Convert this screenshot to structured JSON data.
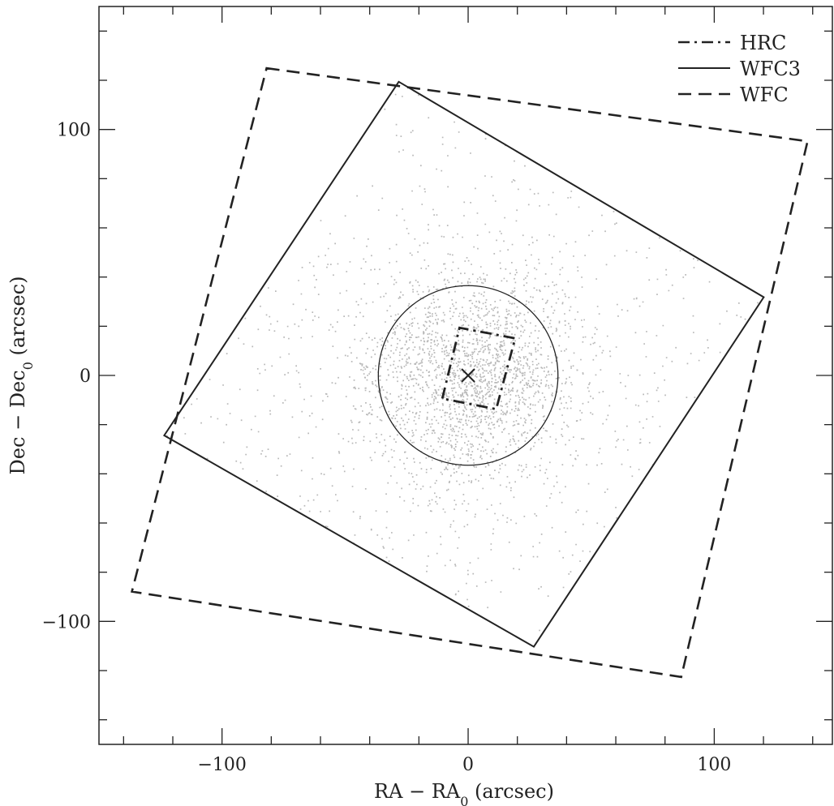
{
  "chart_data": {
    "type": "scatter",
    "xlabel": {
      "main": "RA − RA",
      "sub": "0",
      "tail": " (arcsec)"
    },
    "ylabel": {
      "main": "Dec − Dec",
      "sub": "0",
      "tail": " (arcsec)"
    },
    "xlim": [
      -150,
      148
    ],
    "ylim": [
      -150,
      150
    ],
    "xticks_major": [
      -100,
      0,
      100
    ],
    "yticks_major": [
      -100,
      0,
      100
    ],
    "tick_minor_step": 20,
    "grid": false,
    "legend_position": "top-right",
    "legend": [
      {
        "label": "HRC",
        "style": "dashdot"
      },
      {
        "label": "WFC3",
        "style": "solid"
      },
      {
        "label": "WFC",
        "style": "dashed"
      }
    ],
    "footprints": {
      "HRC": [
        [
          -10.5,
          -9.4
        ],
        [
          -3.5,
          19.4
        ],
        [
          19.1,
          15.1
        ],
        [
          11.4,
          -13.7
        ]
      ],
      "WFC3": [
        [
          -28.2,
          119.4
        ],
        [
          120.1,
          31.8
        ],
        [
          26.7,
          -110.3
        ],
        [
          -123.5,
          -24.4
        ]
      ],
      "WFC": [
        [
          -81.9,
          124.9
        ],
        [
          137.9,
          95.2
        ],
        [
          86.6,
          -122.6
        ],
        [
          -136.6,
          -87.9
        ]
      ]
    },
    "circle": {
      "center": [
        0,
        0
      ],
      "radius": 36.5
    },
    "center_marker": {
      "x": 0,
      "y": 0,
      "symbol": "x"
    },
    "stars": {
      "color": "#b8b8b8",
      "count": 26000,
      "region": "WFC3",
      "distribution": "concentrated toward center"
    }
  }
}
